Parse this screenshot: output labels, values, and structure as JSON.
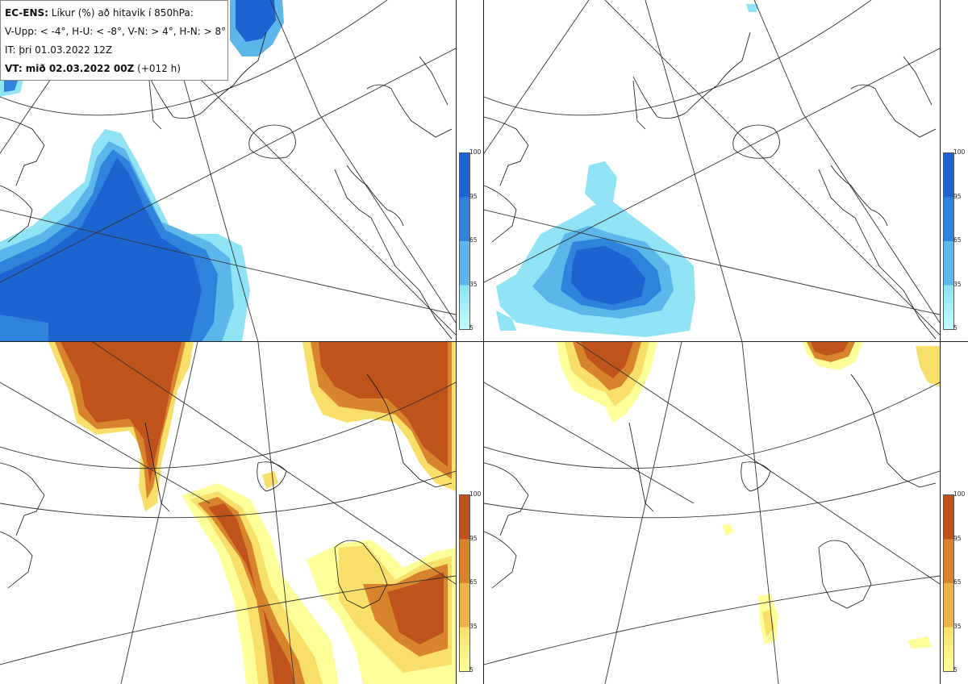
{
  "header": {
    "model": "EC-ENS:",
    "title": "Líkur (%) að hitavik í 850hPa:",
    "legend_line": "V-Upp: < -4°, H-U: < -8°, V-N: > 4°, H-N: > 8°",
    "init_time": "IT: þri 01.03.2022 12Z",
    "valid_label": "VT: mið 02.03.2022 00Z",
    "lead": "(+012 h)"
  },
  "colorbar": {
    "ticks": [
      "100",
      "95",
      "65",
      "35",
      "5"
    ],
    "blue_colors": [
      "#1e63d2",
      "#2f83dc",
      "#5cb6ea",
      "#8fe3f5",
      "#c0fbff"
    ],
    "orange_colors": [
      "#c0521c",
      "#d8842c",
      "#ebb347",
      "#f8df6a",
      "#ffff9a"
    ]
  },
  "panels": [
    {
      "name": "V-Upp",
      "palette": "blue"
    },
    {
      "name": "H-U",
      "palette": "blue"
    },
    {
      "name": "V-N",
      "palette": "orange"
    },
    {
      "name": "H-N",
      "palette": "orange"
    }
  ]
}
